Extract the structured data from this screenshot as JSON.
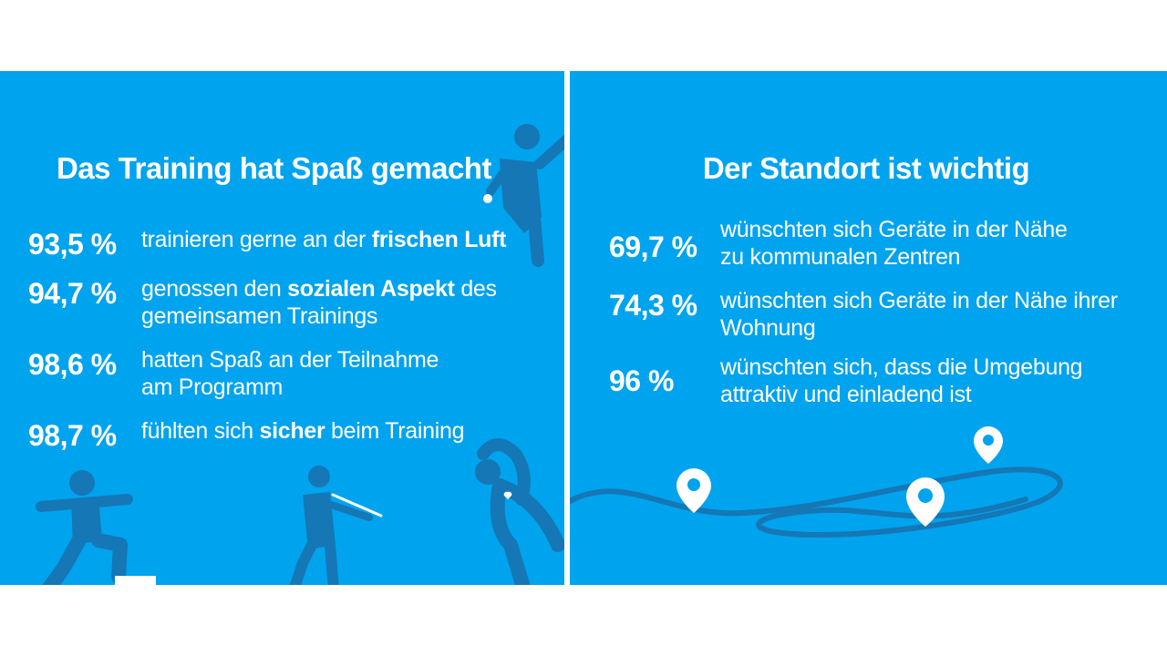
{
  "left": {
    "title": "Das Training hat Spaß gemacht",
    "stats": [
      {
        "pct": "93,5 %",
        "pre": "trainieren gerne an der ",
        "bold": "frischen Luft",
        "post": ""
      },
      {
        "pct": "94,7 %",
        "pre": "genossen den ",
        "bold": "sozialen Aspekt",
        "post": " des",
        "line2": "gemeinsamen Trainings"
      },
      {
        "pct": "98,6 %",
        "pre": "hatten Spaß an der Teilnahme",
        "bold": "",
        "post": "",
        "line2": "am Programm"
      },
      {
        "pct": "98,7 %",
        "pre": "fühlten sich ",
        "bold": "sicher",
        "post": " beim Training"
      }
    ]
  },
  "right": {
    "title": "Der Standort ist wichtig",
    "stats": [
      {
        "pct": "69,7 %",
        "line1": "wünschten sich Geräte in der Nähe",
        "line2": "zu kommunalen Zentren"
      },
      {
        "pct": "74,3 %",
        "line1": "wünschten sich Geräte in der Nähe ihrer",
        "line2": "Wohnung"
      },
      {
        "pct": "96 %",
        "line1": "wünschten sich, dass die Umgebung",
        "line2": "attraktiv und einladend ist"
      }
    ]
  },
  "colors": {
    "background": "#00a3ee",
    "figure": "#1577b5",
    "text": "#ffffff"
  },
  "icons": [
    "person-throwing-icon",
    "person-lunging-icon",
    "person-stretching-icon",
    "person-stretching-side-icon",
    "location-pin-icon",
    "path-line-icon",
    "heart-icon"
  ]
}
